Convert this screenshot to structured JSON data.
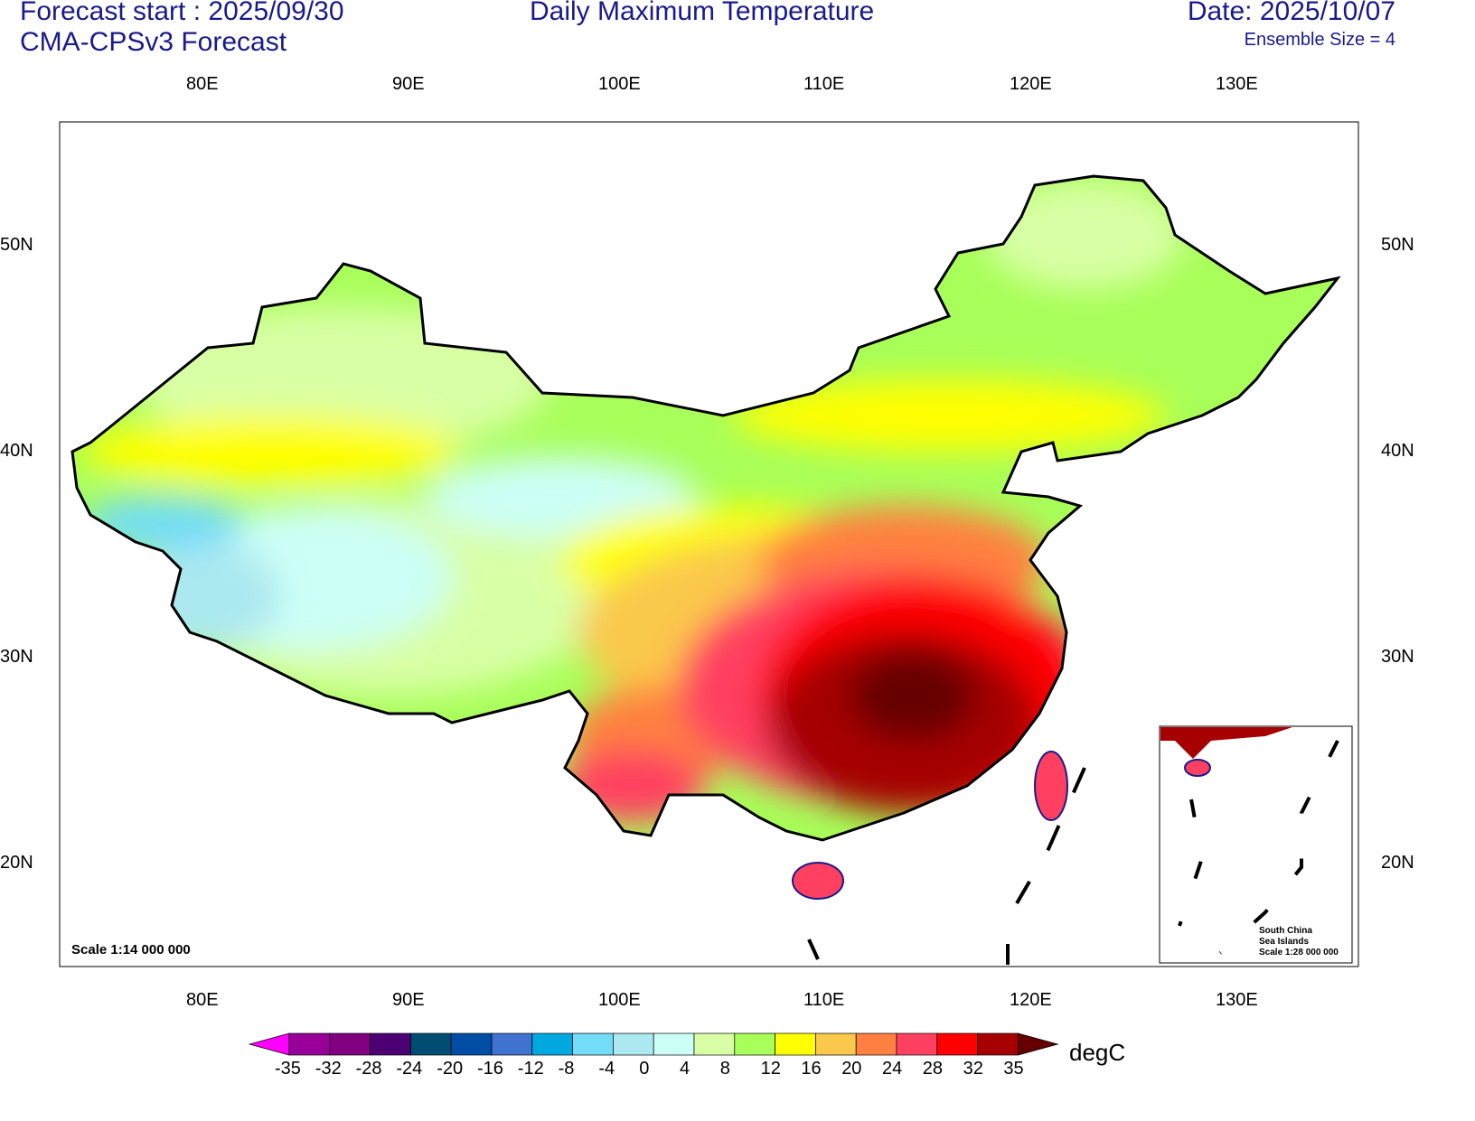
{
  "header": {
    "forecast_start": "Forecast start : 2025/09/30",
    "model": "CMA-CPSv3 Forecast",
    "title": "Daily Maximum Temperature",
    "date": "Date: 2025/10/07",
    "ensemble": "Ensemble Size = 4"
  },
  "axes": {
    "lon_labels": [
      "80E",
      "90E",
      "100E",
      "110E",
      "120E",
      "130E"
    ],
    "lat_labels": [
      "50N",
      "40N",
      "30N",
      "20N"
    ]
  },
  "scale": "Scale 1:14 000 000",
  "inset": {
    "line1": "South China",
    "line2": "Sea Islands",
    "line3": "Scale 1:28 000 000"
  },
  "colorbar": {
    "unit": "degC",
    "labels": [
      "-35",
      "-32",
      "-28",
      "-24",
      "-20",
      "-16",
      "-12",
      "-8",
      "-4",
      "0",
      "4",
      "8",
      "12",
      "16",
      "20",
      "24",
      "28",
      "32",
      "35"
    ],
    "colors": [
      "#ff00ff",
      "#990099",
      "#800080",
      "#4d0073",
      "#004d73",
      "#004da6",
      "#4073d0",
      "#00a8e0",
      "#73dcf8",
      "#ace8f0",
      "#ccfff6",
      "#d9ffa6",
      "#a8ff59",
      "#ffff00",
      "#fac84b",
      "#ff8040",
      "#ff4060",
      "#ff0000",
      "#a60000",
      "#660000"
    ]
  }
}
